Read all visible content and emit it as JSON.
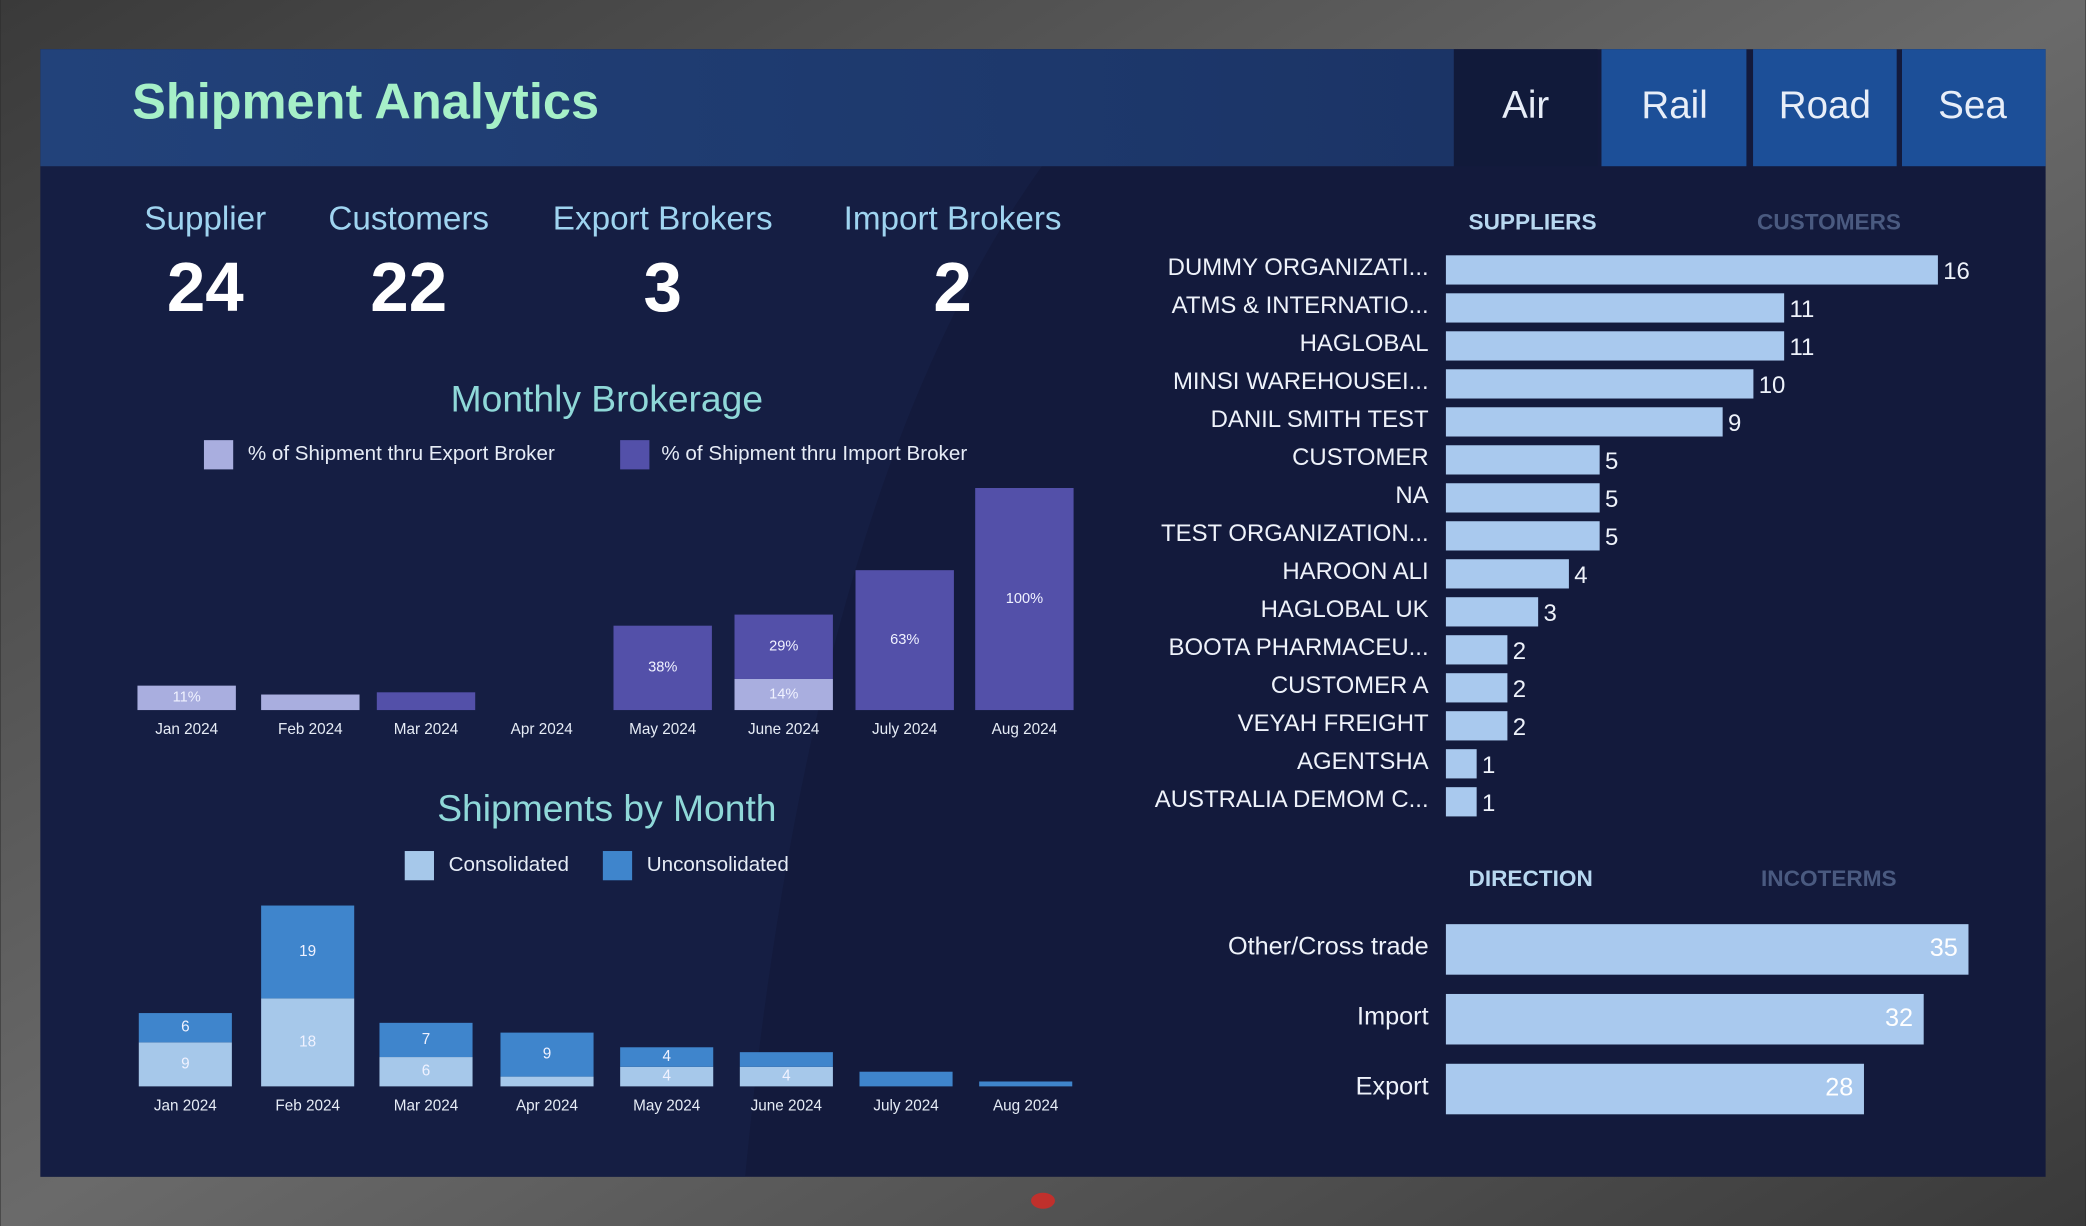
{
  "header": {
    "title": "Shipment Analytics"
  },
  "tabs": [
    "Air",
    "Rail",
    "Road",
    "Sea"
  ],
  "stats": [
    {
      "label": "Supplier",
      "value": 24
    },
    {
      "label": "Customers",
      "value": 22
    },
    {
      "label": "Export Brokers",
      "value": 3
    },
    {
      "label": "Import Brokers",
      "value": 2
    }
  ],
  "chart_data": [
    {
      "type": "stacked-bar",
      "title": "Monthly Brokerage",
      "categories": [
        "Jan 2024",
        "Feb 2024",
        "Mar 2024",
        "Apr 2024",
        "May 2024",
        "June 2024",
        "July 2024",
        "Aug 2024"
      ],
      "series": [
        {
          "name": "% of Shipment thru Export Broker",
          "color": "#a9aedf",
          "values": [
            11,
            7,
            null,
            null,
            null,
            14,
            null,
            null
          ],
          "value_labels": [
            "11%",
            null,
            null,
            null,
            null,
            "14%",
            null,
            null
          ]
        },
        {
          "name": "% of Shipment thru Import Broker",
          "color": "#5350a9",
          "values": [
            null,
            null,
            8,
            null,
            38,
            29,
            63,
            100
          ],
          "value_labels": [
            null,
            null,
            null,
            null,
            "38%",
            "29%",
            "63%",
            "100%"
          ]
        }
      ]
    },
    {
      "type": "stacked-bar",
      "title": "Shipments by Month",
      "categories": [
        "Jan 2024",
        "Feb 2024",
        "Mar 2024",
        "Apr 2024",
        "May 2024",
        "June 2024",
        "July 2024",
        "Aug 2024"
      ],
      "series": [
        {
          "name": "Consolidated",
          "color": "#a6c8ea",
          "values": [
            9,
            18,
            6,
            2,
            4,
            4,
            null,
            null
          ]
        },
        {
          "name": "Unconsolidated",
          "color": "#3f85cc",
          "values": [
            6,
            19,
            7,
            9,
            4,
            3,
            3,
            1
          ]
        }
      ]
    },
    {
      "type": "hbar",
      "tabs": [
        "SUPPLIERS",
        "CUSTOMERS"
      ],
      "color": "#a9c9ee",
      "categories": [
        "DUMMY ORGANIZATI...",
        "ATMS & INTERNATIO...",
        "HAGLOBAL",
        "MINSI WAREHOUSEI...",
        "DANIL SMITH TEST",
        "CUSTOMER",
        "NA",
        "TEST ORGANIZATION...",
        "HAROON ALI",
        "HAGLOBAL UK",
        "BOOTA PHARMACEU...",
        "CUSTOMER A",
        "VEYAH FREIGHT",
        "AGENTSHA",
        "AUSTRALIA DEMOM C..."
      ],
      "values": [
        16,
        11,
        11,
        10,
        9,
        5,
        5,
        5,
        4,
        3,
        2,
        2,
        2,
        1,
        1
      ]
    },
    {
      "type": "hbar-inside",
      "tabs": [
        "DIRECTION",
        "INCOTERMS"
      ],
      "color": "#a9c9ee",
      "categories": [
        "Other/Cross trade",
        "Import",
        "Export"
      ],
      "values": [
        35,
        32,
        28
      ]
    }
  ]
}
